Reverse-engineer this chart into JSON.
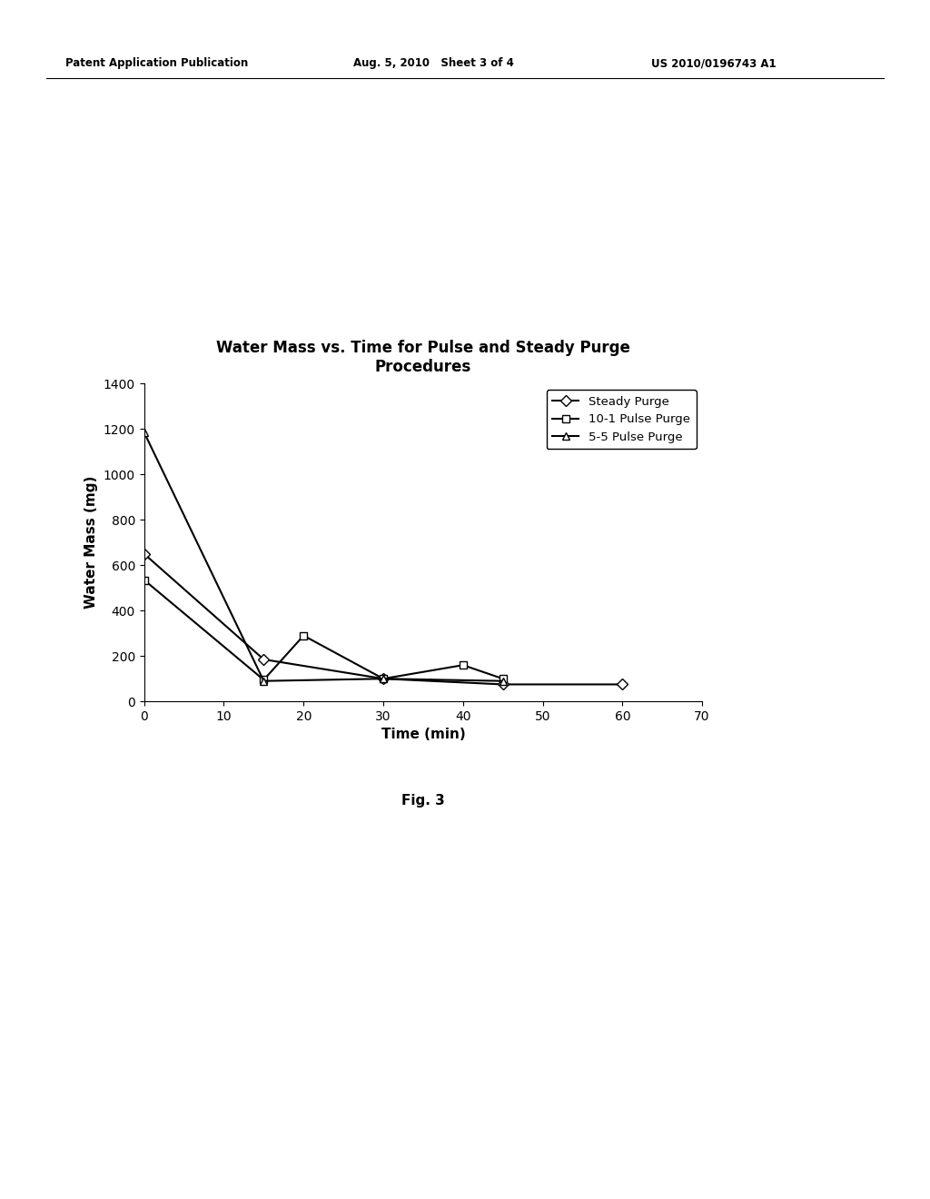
{
  "title": "Water Mass vs. Time for Pulse and Steady Purge\nProcedures",
  "xlabel": "Time (min)",
  "ylabel": "Water Mass (mg)",
  "header_left": "Patent Application Publication",
  "header_center": "Aug. 5, 2010   Sheet 3 of 4",
  "header_right": "US 2010/0196743 A1",
  "fig_label": "Fig. 3",
  "xlim": [
    0,
    70
  ],
  "ylim": [
    0,
    1400
  ],
  "xticks": [
    0,
    10,
    20,
    30,
    40,
    50,
    60,
    70
  ],
  "yticks": [
    0,
    200,
    400,
    600,
    800,
    1000,
    1200,
    1400
  ],
  "series": [
    {
      "label": "Steady Purge",
      "x": [
        0,
        15,
        30,
        45,
        60
      ],
      "y": [
        650,
        185,
        100,
        75,
        75
      ],
      "marker": "D",
      "color": "#000000",
      "linestyle": "-",
      "linewidth": 1.5,
      "markersize": 6,
      "markerfacecolor": "white"
    },
    {
      "label": "10-1 Pulse Purge",
      "x": [
        0,
        15,
        20,
        30,
        40,
        45
      ],
      "y": [
        535,
        95,
        290,
        100,
        160,
        100
      ],
      "marker": "s",
      "color": "#000000",
      "linestyle": "-",
      "linewidth": 1.5,
      "markersize": 6,
      "markerfacecolor": "white"
    },
    {
      "label": "5-5 Pulse Purge",
      "x": [
        0,
        15,
        30,
        45
      ],
      "y": [
        1185,
        90,
        100,
        90
      ],
      "marker": "^",
      "color": "#000000",
      "linestyle": "-",
      "linewidth": 1.5,
      "markersize": 6,
      "markerfacecolor": "white"
    }
  ],
  "background_color": "#ffffff",
  "title_fontsize": 12,
  "axis_label_fontsize": 11,
  "tick_fontsize": 10,
  "legend_fontsize": 9.5,
  "header_fontsize": 8.5
}
